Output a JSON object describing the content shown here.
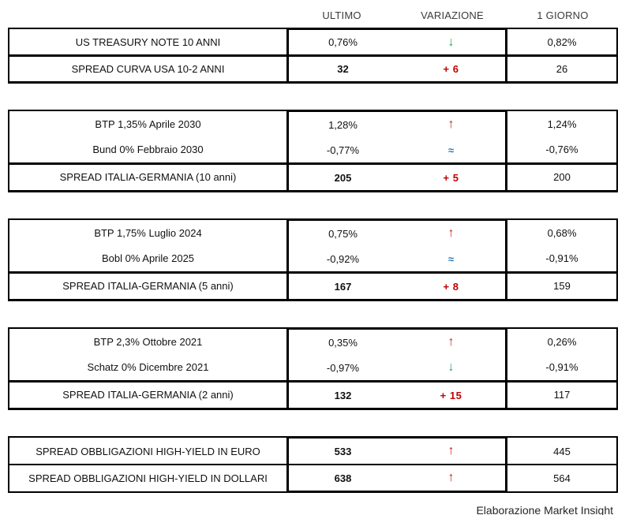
{
  "header": {
    "columns": [
      "ULTIMO",
      "VARIAZIONE",
      "1 GIORNO"
    ]
  },
  "colors": {
    "up": "#c2262e",
    "down": "#2aa35c",
    "flat": "#2e75b6",
    "delta": "#c00000",
    "border": "#000000",
    "header_text": "#3b3b3b",
    "text": "#111111"
  },
  "tables": [
    {
      "name": "us-treasury",
      "rows": [
        {
          "label": "US TREASURY NOTE 10 ANNI",
          "ultimo": "0,76%",
          "variazione": {
            "symbol": "↓",
            "color": "down"
          },
          "giorno": "0,82%"
        },
        {
          "label": "SPREAD CURVA USA 10-2 ANNI",
          "ultimo": "32",
          "variazione": {
            "symbol": "+ 6",
            "color": "delta"
          },
          "giorno": "26"
        }
      ]
    },
    {
      "name": "italy-germany-10y",
      "rows": [
        {
          "label": "BTP 1,35% Aprile 2030",
          "ultimo": "1,28%",
          "variazione": {
            "symbol": "↑",
            "color": "up"
          },
          "giorno": "1,24%"
        },
        {
          "label": "Bund 0% Febbraio 2030",
          "ultimo": "-0,77%",
          "variazione": {
            "symbol": "≈",
            "color": "flat"
          },
          "giorno": "-0,76%"
        },
        {
          "label": "SPREAD ITALIA-GERMANIA (10 anni)",
          "ultimo": "205",
          "variazione": {
            "symbol": "+ 5",
            "color": "delta"
          },
          "giorno": "200"
        }
      ]
    },
    {
      "name": "italy-germany-5y",
      "rows": [
        {
          "label": "BTP 1,75% Luglio 2024",
          "ultimo": "0,75%",
          "variazione": {
            "symbol": "↑",
            "color": "up"
          },
          "giorno": "0,68%"
        },
        {
          "label": "Bobl 0% Aprile 2025",
          "ultimo": "-0,92%",
          "variazione": {
            "symbol": "≈",
            "color": "flat"
          },
          "giorno": "-0,91%"
        },
        {
          "label": "SPREAD ITALIA-GERMANIA (5 anni)",
          "ultimo": "167",
          "variazione": {
            "symbol": "+ 8",
            "color": "delta"
          },
          "giorno": "159"
        }
      ]
    },
    {
      "name": "italy-germany-2y",
      "rows": [
        {
          "label": "BTP 2,3% Ottobre 2021",
          "ultimo": "0,35%",
          "variazione": {
            "symbol": "↑",
            "color": "up"
          },
          "giorno": "0,26%"
        },
        {
          "label": "Schatz 0% Dicembre 2021",
          "ultimo": "-0,97%",
          "variazione": {
            "symbol": "↓",
            "color": "down"
          },
          "giorno": "-0,91%"
        },
        {
          "label": "SPREAD ITALIA-GERMANIA (2 anni)",
          "ultimo": "132",
          "variazione": {
            "symbol": "+ 15",
            "color": "delta"
          },
          "giorno": "117"
        }
      ]
    },
    {
      "name": "high-yield",
      "rows": [
        {
          "label": "SPREAD OBBLIGAZIONI HIGH-YIELD IN EURO",
          "ultimo": "533",
          "variazione": {
            "symbol": "↑",
            "color": "up"
          },
          "giorno": "445"
        },
        {
          "label": "SPREAD OBBLIGAZIONI HIGH-YIELD IN DOLLARI",
          "ultimo": "638",
          "variazione": {
            "symbol": "↑",
            "color": "up"
          },
          "giorno": "564"
        }
      ]
    }
  ],
  "footer": {
    "credit": "Elaborazione Market Insight"
  }
}
